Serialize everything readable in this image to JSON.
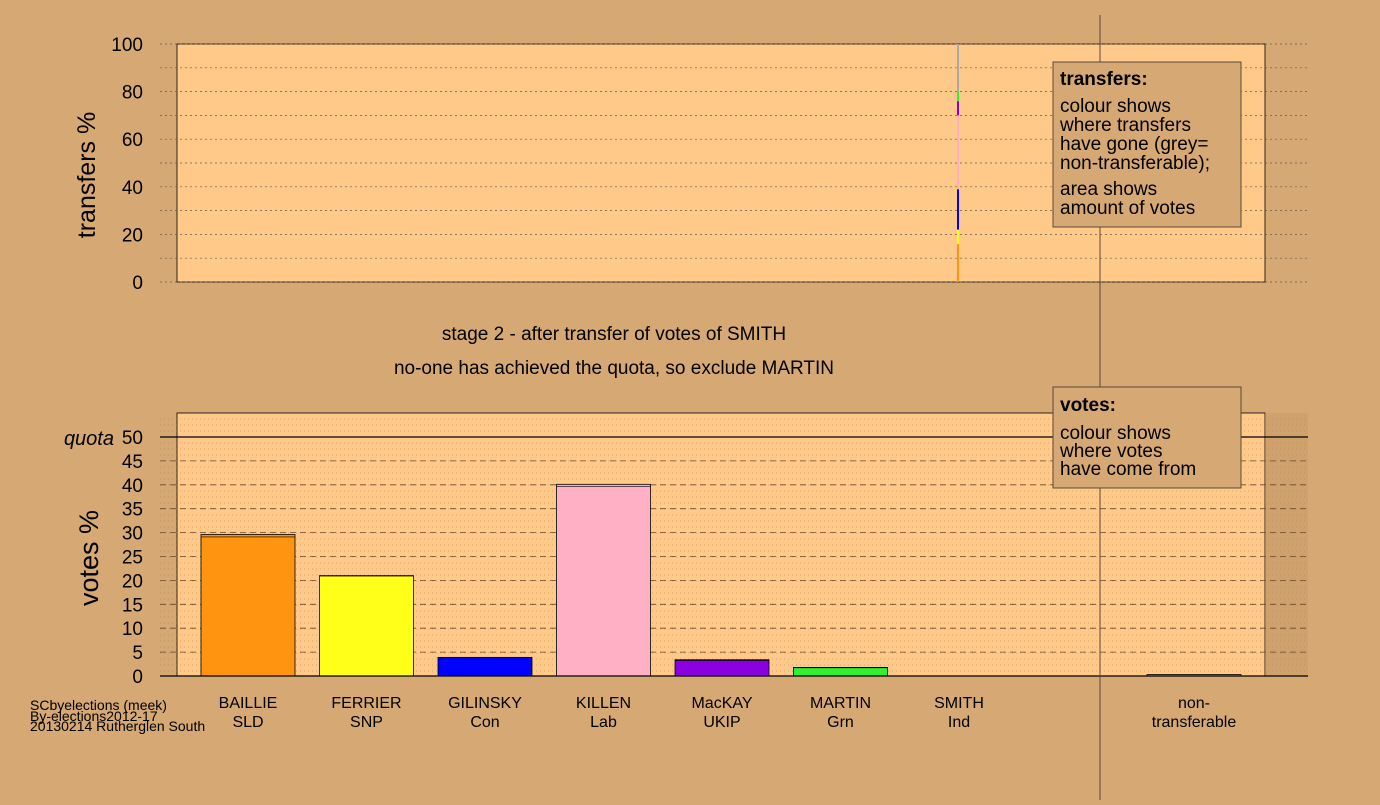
{
  "header": {
    "title": "stage 2 - after transfer of votes of SMITH",
    "subtitle": "no-one has achieved the quota, so exclude MARTIN"
  },
  "footer": {
    "line1": "SCbyelections (meek)",
    "line2": "By-elections2012-17",
    "line3": "20130214 Rutherglen South"
  },
  "legends": {
    "transfers": {
      "heading": "transfers:",
      "lines": [
        "colour shows",
        "where transfers",
        "have gone (grey=",
        "non-transferable);"
      ],
      "lines2": [
        "area shows",
        "amount of votes"
      ]
    },
    "votes": {
      "heading": "votes:",
      "lines": [
        "colour shows",
        "where votes",
        "have come from"
      ]
    }
  },
  "colors": {
    "background": "#d5a874",
    "plot_fill": "#ffc98a",
    "BAILLIE": "#ff9410",
    "FERRIER": "#ffff1a",
    "GILINSKY": "#0000ff",
    "KILLEN": "#ffb0c4",
    "MacKAY": "#8a00e0",
    "MARTIN": "#30f030",
    "SMITH": "#aaaaaa",
    "non-transferable": "#aaaaaa"
  },
  "chart_data": [
    {
      "type": "bar",
      "name": "transfers",
      "ylabel": "transfers %",
      "ylim": [
        0,
        100
      ],
      "yticks": [
        0,
        20,
        40,
        60,
        80,
        100
      ],
      "grid": true,
      "transfer_from": "SMITH",
      "segments": [
        {
          "to": "BAILLIE",
          "value": 16
        },
        {
          "to": "FERRIER",
          "value": 6
        },
        {
          "to": "GILINSKY",
          "value": 17
        },
        {
          "to": "KILLEN",
          "value": 31
        },
        {
          "to": "MacKAY",
          "value": 6
        },
        {
          "to": "MARTIN",
          "value": 4
        },
        {
          "to": "non-transferable",
          "value": 20
        }
      ]
    },
    {
      "type": "bar",
      "name": "votes",
      "ylabel": "votes %",
      "ylim": [
        0,
        50
      ],
      "yticks": [
        0,
        5,
        10,
        15,
        20,
        25,
        30,
        35,
        40,
        45,
        50
      ],
      "quota": 50,
      "quota_label": "quota",
      "grid": true,
      "categories": [
        {
          "name": "BAILLIE",
          "party": "SLD",
          "value": 29.6,
          "prior": 29.1
        },
        {
          "name": "FERRIER",
          "party": "SNP",
          "value": 21.0,
          "prior": 20.9
        },
        {
          "name": "GILINSKY",
          "party": "Con",
          "value": 3.9,
          "prior": 3.5
        },
        {
          "name": "KILLEN",
          "party": "Lab",
          "value": 40.1,
          "prior": 39.6
        },
        {
          "name": "MacKAY",
          "party": "UKIP",
          "value": 3.4,
          "prior": 3.2
        },
        {
          "name": "MARTIN",
          "party": "Grn",
          "value": 1.8,
          "prior": 1.7
        },
        {
          "name": "SMITH",
          "party": "Ind",
          "value": 0,
          "prior": 0
        }
      ],
      "nontransferable": {
        "line1": "non-",
        "line2": "transferable",
        "value": 0.3
      }
    }
  ]
}
